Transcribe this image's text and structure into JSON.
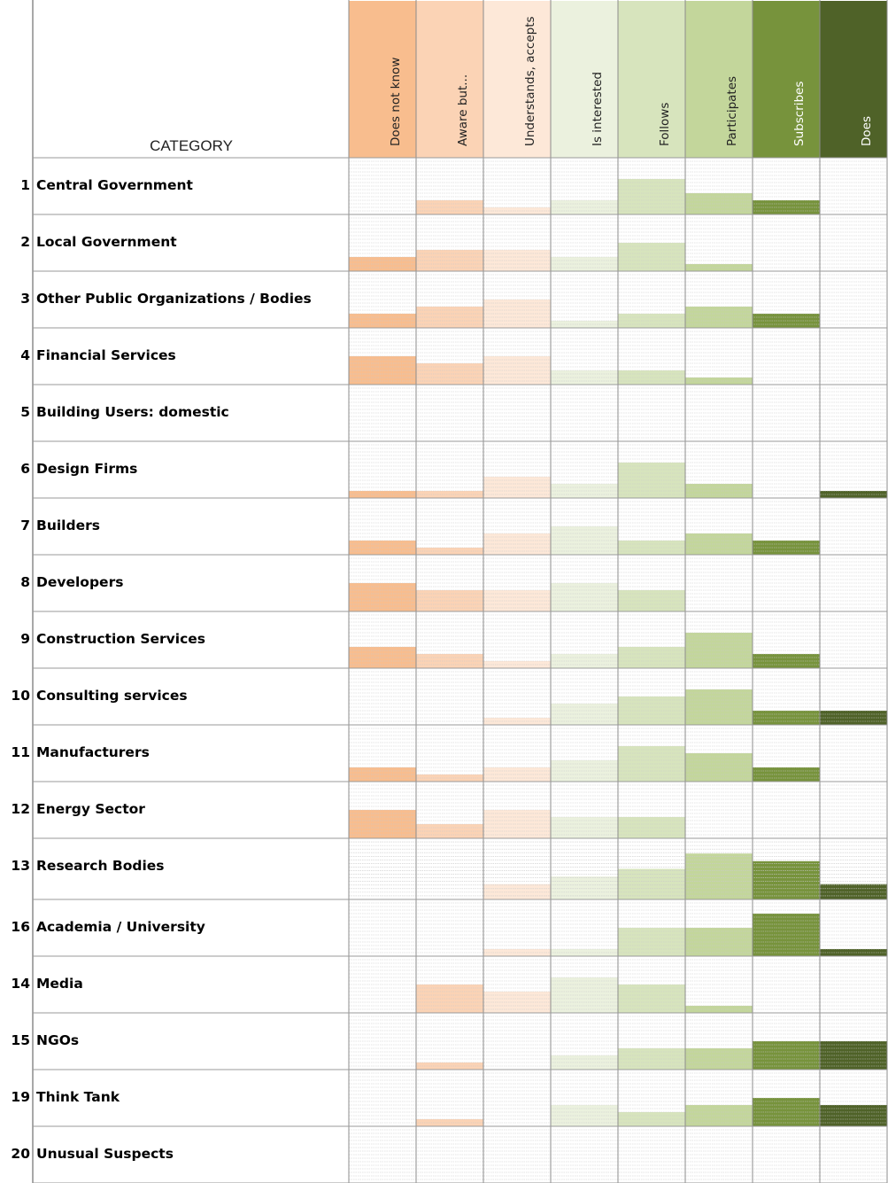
{
  "header": {
    "category_label": "CATEGORY"
  },
  "levels": [
    {
      "label": "Does not know",
      "color": "#F8BD8E",
      "text_color": "#222222"
    },
    {
      "label": "Aware but...",
      "color": "#FBD3B5",
      "text_color": "#222222"
    },
    {
      "label": "Understands, accepts",
      "color": "#FDE8D8",
      "text_color": "#222222"
    },
    {
      "label": "Is interested",
      "color": "#EBF1DE",
      "text_color": "#222222"
    },
    {
      "label": "Follows",
      "color": "#D7E4BD",
      "text_color": "#222222"
    },
    {
      "label": "Participates",
      "color": "#C3D69B",
      "text_color": "#222222"
    },
    {
      "label": "Subscribes",
      "color": "#77933C",
      "text_color": "#ffffff"
    },
    {
      "label": "Does",
      "color": "#4F6228",
      "text_color": "#ffffff"
    }
  ],
  "chart_data": {
    "type": "heatmap",
    "description_units": "bar height = number of filled spreadsheet sub-rows (of 8) per cell",
    "columns": [
      "Does not know",
      "Aware but...",
      "Understands, accepts",
      "Is interested",
      "Follows",
      "Participates",
      "Subscribes",
      "Does"
    ],
    "rows": [
      {
        "num": "1",
        "name": "Central Government",
        "values": [
          0,
          2,
          1,
          2,
          5,
          3,
          2,
          0
        ]
      },
      {
        "num": "2",
        "name": "Local Government",
        "values": [
          2,
          3,
          3,
          2,
          4,
          1,
          0,
          0
        ]
      },
      {
        "num": "3",
        "name": "Other Public Organizations / Bodies",
        "values": [
          2,
          3,
          4,
          1,
          2,
          3,
          2,
          0
        ]
      },
      {
        "num": "4",
        "name": "Financial Services",
        "values": [
          4,
          3,
          4,
          2,
          2,
          1,
          0,
          0
        ]
      },
      {
        "num": "5",
        "name": "Building Users: domestic",
        "values": [
          0,
          0,
          0,
          0,
          0,
          0,
          0,
          0
        ]
      },
      {
        "num": "6",
        "name": "Design Firms",
        "values": [
          1,
          1,
          3,
          2,
          5,
          2,
          0,
          1
        ]
      },
      {
        "num": "7",
        "name": "Builders",
        "values": [
          2,
          1,
          3,
          4,
          2,
          3,
          2,
          0
        ]
      },
      {
        "num": "8",
        "name": "Developers",
        "values": [
          4,
          3,
          3,
          4,
          3,
          0,
          0,
          0
        ]
      },
      {
        "num": "9",
        "name": "Construction Services",
        "values": [
          3,
          2,
          1,
          2,
          3,
          5,
          2,
          0
        ]
      },
      {
        "num": "10",
        "name": "Consulting services",
        "values": [
          0,
          0,
          1,
          3,
          4,
          5,
          2,
          2
        ]
      },
      {
        "num": "11",
        "name": "Manufacturers",
        "values": [
          2,
          1,
          2,
          3,
          5,
          4,
          2,
          0
        ]
      },
      {
        "num": "12",
        "name": "Energy Sector",
        "values": [
          4,
          2,
          4,
          3,
          3,
          0,
          0,
          0
        ]
      },
      {
        "num": "13",
        "name": "Research Bodies",
        "values": [
          0,
          0,
          2,
          3,
          4,
          6,
          5,
          2
        ]
      },
      {
        "num": "16",
        "name": "Academia / University",
        "values": [
          0,
          0,
          1,
          1,
          4,
          4,
          6,
          1
        ]
      },
      {
        "num": "14",
        "name": "Media",
        "values": [
          0,
          4,
          3,
          5,
          4,
          1,
          0,
          0
        ]
      },
      {
        "num": "15",
        "name": "NGOs",
        "values": [
          0,
          1,
          0,
          2,
          3,
          3,
          4,
          4
        ]
      },
      {
        "num": "19",
        "name": "Think Tank",
        "values": [
          0,
          1,
          0,
          3,
          2,
          3,
          4,
          3
        ]
      },
      {
        "num": "20",
        "name": "Unusual Suspects",
        "values": [
          0,
          0,
          0,
          0,
          0,
          0,
          0,
          0
        ]
      }
    ]
  }
}
